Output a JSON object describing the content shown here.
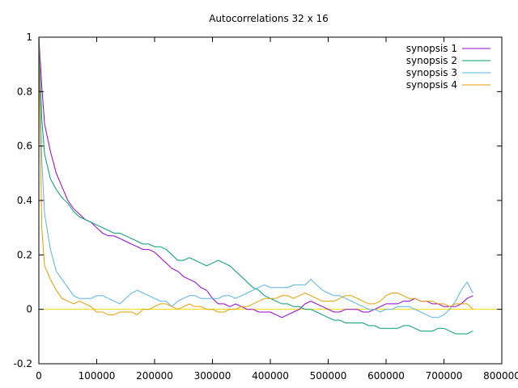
{
  "chart_data": {
    "type": "line",
    "title": "Autocorrelations 32 x 16",
    "xlabel": "",
    "ylabel": "",
    "xlim": [
      0,
      800000
    ],
    "ylim": [
      -0.2,
      1
    ],
    "x_ticks": [
      0,
      100000,
      200000,
      300000,
      400000,
      500000,
      600000,
      700000,
      800000
    ],
    "x_tick_labels": [
      "0",
      "100000",
      "200000",
      "300000",
      "400000",
      "500000",
      "600000",
      "700000",
      "800000"
    ],
    "y_ticks": [
      -0.2,
      0,
      0.2,
      0.4,
      0.6,
      0.8,
      1
    ],
    "y_tick_labels": [
      "-0.2",
      "0",
      "0.2",
      "0.4",
      "0.6",
      "0.8",
      "1"
    ],
    "grid": false,
    "legend_position": "top-right",
    "reference_line": {
      "y": 0,
      "color": "#ffd700"
    },
    "series": [
      {
        "name": "synopsis 1",
        "color": "#9400d3",
        "x": [
          0,
          5000,
          10000,
          20000,
          30000,
          40000,
          50000,
          60000,
          70000,
          80000,
          90000,
          100000,
          110000,
          120000,
          130000,
          140000,
          150000,
          160000,
          170000,
          180000,
          190000,
          200000,
          210000,
          220000,
          230000,
          240000,
          250000,
          260000,
          270000,
          280000,
          290000,
          300000,
          310000,
          320000,
          330000,
          340000,
          350000,
          360000,
          370000,
          380000,
          390000,
          400000,
          410000,
          420000,
          430000,
          440000,
          450000,
          460000,
          470000,
          480000,
          490000,
          500000,
          510000,
          520000,
          530000,
          540000,
          550000,
          560000,
          570000,
          580000,
          590000,
          600000,
          610000,
          620000,
          630000,
          640000,
          650000,
          660000,
          670000,
          680000,
          690000,
          700000,
          710000,
          720000,
          730000,
          740000,
          750000
        ],
        "y": [
          1.0,
          0.82,
          0.68,
          0.58,
          0.5,
          0.45,
          0.4,
          0.37,
          0.35,
          0.33,
          0.32,
          0.3,
          0.28,
          0.27,
          0.27,
          0.26,
          0.25,
          0.24,
          0.23,
          0.22,
          0.22,
          0.21,
          0.19,
          0.17,
          0.15,
          0.14,
          0.12,
          0.11,
          0.1,
          0.08,
          0.07,
          0.04,
          0.02,
          0.02,
          0.01,
          0.02,
          0.01,
          0.0,
          0.0,
          -0.01,
          -0.01,
          -0.01,
          -0.02,
          -0.03,
          -0.02,
          -0.01,
          0.0,
          0.02,
          0.03,
          0.02,
          0.01,
          0.0,
          -0.01,
          -0.01,
          0.0,
          0.0,
          0.0,
          -0.01,
          -0.01,
          0.0,
          0.01,
          0.02,
          0.02,
          0.02,
          0.03,
          0.03,
          0.04,
          0.03,
          0.03,
          0.02,
          0.02,
          0.01,
          0.01,
          0.01,
          0.02,
          0.04,
          0.05
        ]
      },
      {
        "name": "synopsis 2",
        "color": "#009e73",
        "x": [
          0,
          5000,
          10000,
          20000,
          30000,
          40000,
          50000,
          60000,
          70000,
          80000,
          90000,
          100000,
          110000,
          120000,
          130000,
          140000,
          150000,
          160000,
          170000,
          180000,
          190000,
          200000,
          210000,
          220000,
          230000,
          240000,
          250000,
          260000,
          270000,
          280000,
          290000,
          300000,
          310000,
          320000,
          330000,
          340000,
          350000,
          360000,
          370000,
          380000,
          390000,
          400000,
          410000,
          420000,
          430000,
          440000,
          450000,
          460000,
          470000,
          480000,
          490000,
          500000,
          510000,
          520000,
          530000,
          540000,
          550000,
          560000,
          570000,
          580000,
          590000,
          600000,
          610000,
          620000,
          630000,
          640000,
          650000,
          660000,
          670000,
          680000,
          690000,
          700000,
          710000,
          720000,
          730000,
          740000,
          750000
        ],
        "y": [
          1.0,
          0.7,
          0.57,
          0.48,
          0.44,
          0.41,
          0.39,
          0.36,
          0.34,
          0.33,
          0.32,
          0.31,
          0.3,
          0.29,
          0.28,
          0.28,
          0.27,
          0.26,
          0.25,
          0.24,
          0.24,
          0.23,
          0.23,
          0.22,
          0.2,
          0.18,
          0.18,
          0.19,
          0.18,
          0.17,
          0.16,
          0.17,
          0.18,
          0.17,
          0.16,
          0.14,
          0.12,
          0.1,
          0.08,
          0.07,
          0.05,
          0.04,
          0.03,
          0.02,
          0.02,
          0.01,
          0.01,
          0.0,
          0.0,
          -0.01,
          -0.02,
          -0.03,
          -0.04,
          -0.04,
          -0.05,
          -0.05,
          -0.05,
          -0.05,
          -0.06,
          -0.06,
          -0.07,
          -0.07,
          -0.07,
          -0.07,
          -0.06,
          -0.06,
          -0.07,
          -0.08,
          -0.08,
          -0.08,
          -0.07,
          -0.07,
          -0.08,
          -0.09,
          -0.09,
          -0.09,
          -0.08
        ]
      },
      {
        "name": "synopsis 3",
        "color": "#56b4e9",
        "x": [
          0,
          5000,
          10000,
          20000,
          30000,
          40000,
          50000,
          60000,
          70000,
          80000,
          90000,
          100000,
          110000,
          120000,
          130000,
          140000,
          150000,
          160000,
          170000,
          180000,
          190000,
          200000,
          210000,
          220000,
          230000,
          240000,
          250000,
          260000,
          270000,
          280000,
          290000,
          300000,
          310000,
          320000,
          330000,
          340000,
          350000,
          360000,
          370000,
          380000,
          390000,
          400000,
          410000,
          420000,
          430000,
          440000,
          450000,
          460000,
          470000,
          480000,
          490000,
          500000,
          510000,
          520000,
          530000,
          540000,
          550000,
          560000,
          570000,
          580000,
          590000,
          600000,
          610000,
          620000,
          630000,
          640000,
          650000,
          660000,
          670000,
          680000,
          690000,
          700000,
          710000,
          720000,
          730000,
          740000,
          750000
        ],
        "y": [
          1.0,
          0.55,
          0.35,
          0.22,
          0.14,
          0.11,
          0.08,
          0.05,
          0.04,
          0.04,
          0.04,
          0.05,
          0.05,
          0.04,
          0.03,
          0.02,
          0.04,
          0.06,
          0.07,
          0.06,
          0.05,
          0.04,
          0.03,
          0.03,
          0.01,
          0.03,
          0.04,
          0.05,
          0.05,
          0.04,
          0.04,
          0.04,
          0.04,
          0.05,
          0.05,
          0.04,
          0.05,
          0.06,
          0.07,
          0.08,
          0.09,
          0.08,
          0.08,
          0.08,
          0.08,
          0.09,
          0.09,
          0.09,
          0.11,
          0.09,
          0.07,
          0.06,
          0.05,
          0.05,
          0.04,
          0.03,
          0.02,
          0.01,
          0.0,
          0.0,
          -0.01,
          0.0,
          0.0,
          0.01,
          0.01,
          0.01,
          0.0,
          -0.01,
          -0.02,
          -0.03,
          -0.03,
          -0.02,
          0.0,
          0.03,
          0.07,
          0.1,
          0.06
        ]
      },
      {
        "name": "synopsis 4",
        "color": "#e69f00",
        "x": [
          0,
          5000,
          10000,
          20000,
          30000,
          40000,
          50000,
          60000,
          70000,
          80000,
          90000,
          100000,
          110000,
          120000,
          130000,
          140000,
          150000,
          160000,
          170000,
          180000,
          190000,
          200000,
          210000,
          220000,
          230000,
          240000,
          250000,
          260000,
          270000,
          280000,
          290000,
          300000,
          310000,
          320000,
          330000,
          340000,
          350000,
          360000,
          370000,
          380000,
          390000,
          400000,
          410000,
          420000,
          430000,
          440000,
          450000,
          460000,
          470000,
          480000,
          490000,
          500000,
          510000,
          520000,
          530000,
          540000,
          550000,
          560000,
          570000,
          580000,
          590000,
          600000,
          610000,
          620000,
          630000,
          640000,
          650000,
          660000,
          670000,
          680000,
          690000,
          700000,
          710000,
          720000,
          730000,
          740000,
          750000
        ],
        "y": [
          1.0,
          0.3,
          0.16,
          0.11,
          0.07,
          0.04,
          0.03,
          0.02,
          0.03,
          0.02,
          0.01,
          -0.01,
          -0.01,
          -0.02,
          -0.02,
          -0.01,
          -0.01,
          -0.01,
          -0.02,
          0.0,
          0.0,
          0.01,
          0.02,
          0.02,
          0.01,
          0.0,
          0.01,
          0.02,
          0.01,
          0.01,
          0.0,
          0.0,
          -0.01,
          -0.01,
          0.0,
          0.0,
          0.01,
          0.01,
          0.02,
          0.03,
          0.04,
          0.04,
          0.04,
          0.05,
          0.05,
          0.04,
          0.05,
          0.06,
          0.05,
          0.04,
          0.03,
          0.03,
          0.03,
          0.04,
          0.05,
          0.05,
          0.04,
          0.03,
          0.02,
          0.02,
          0.03,
          0.05,
          0.06,
          0.06,
          0.05,
          0.04,
          0.04,
          0.03,
          0.03,
          0.03,
          0.02,
          0.02,
          0.01,
          0.02,
          0.02,
          0.02,
          0.0
        ]
      }
    ]
  }
}
